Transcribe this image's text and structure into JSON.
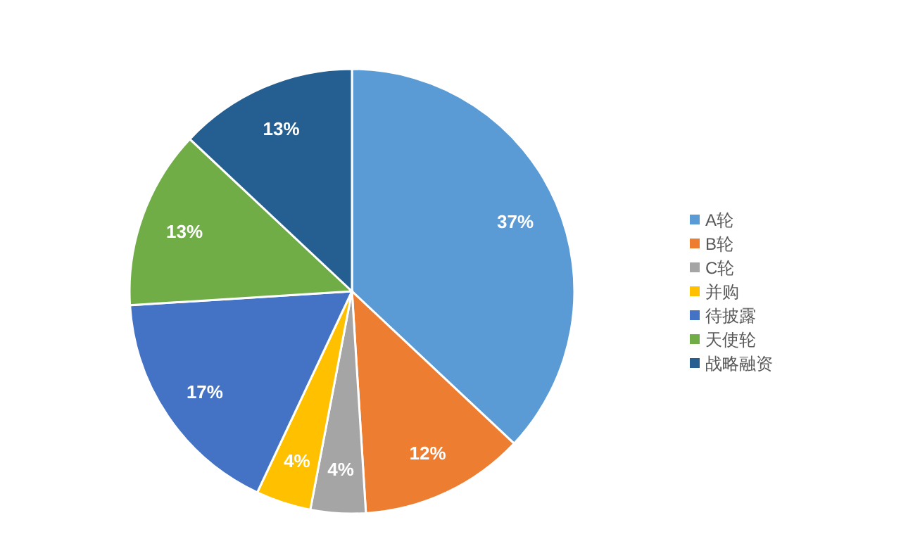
{
  "chart_data": {
    "type": "pie",
    "categories": [
      "A轮",
      "B轮",
      "C轮",
      "并购",
      "待披露",
      "天使轮",
      "战略融资"
    ],
    "values": [
      37,
      12,
      4,
      4,
      17,
      13,
      13
    ],
    "colors": [
      "#5b9bd5",
      "#ed7d31",
      "#a5a5a5",
      "#ffc000",
      "#4472c4",
      "#70ad47",
      "#255e91"
    ],
    "value_labels": [
      "37%",
      "12%",
      "4%",
      "4%",
      "17%",
      "13%",
      "13%"
    ],
    "legend": "right"
  }
}
